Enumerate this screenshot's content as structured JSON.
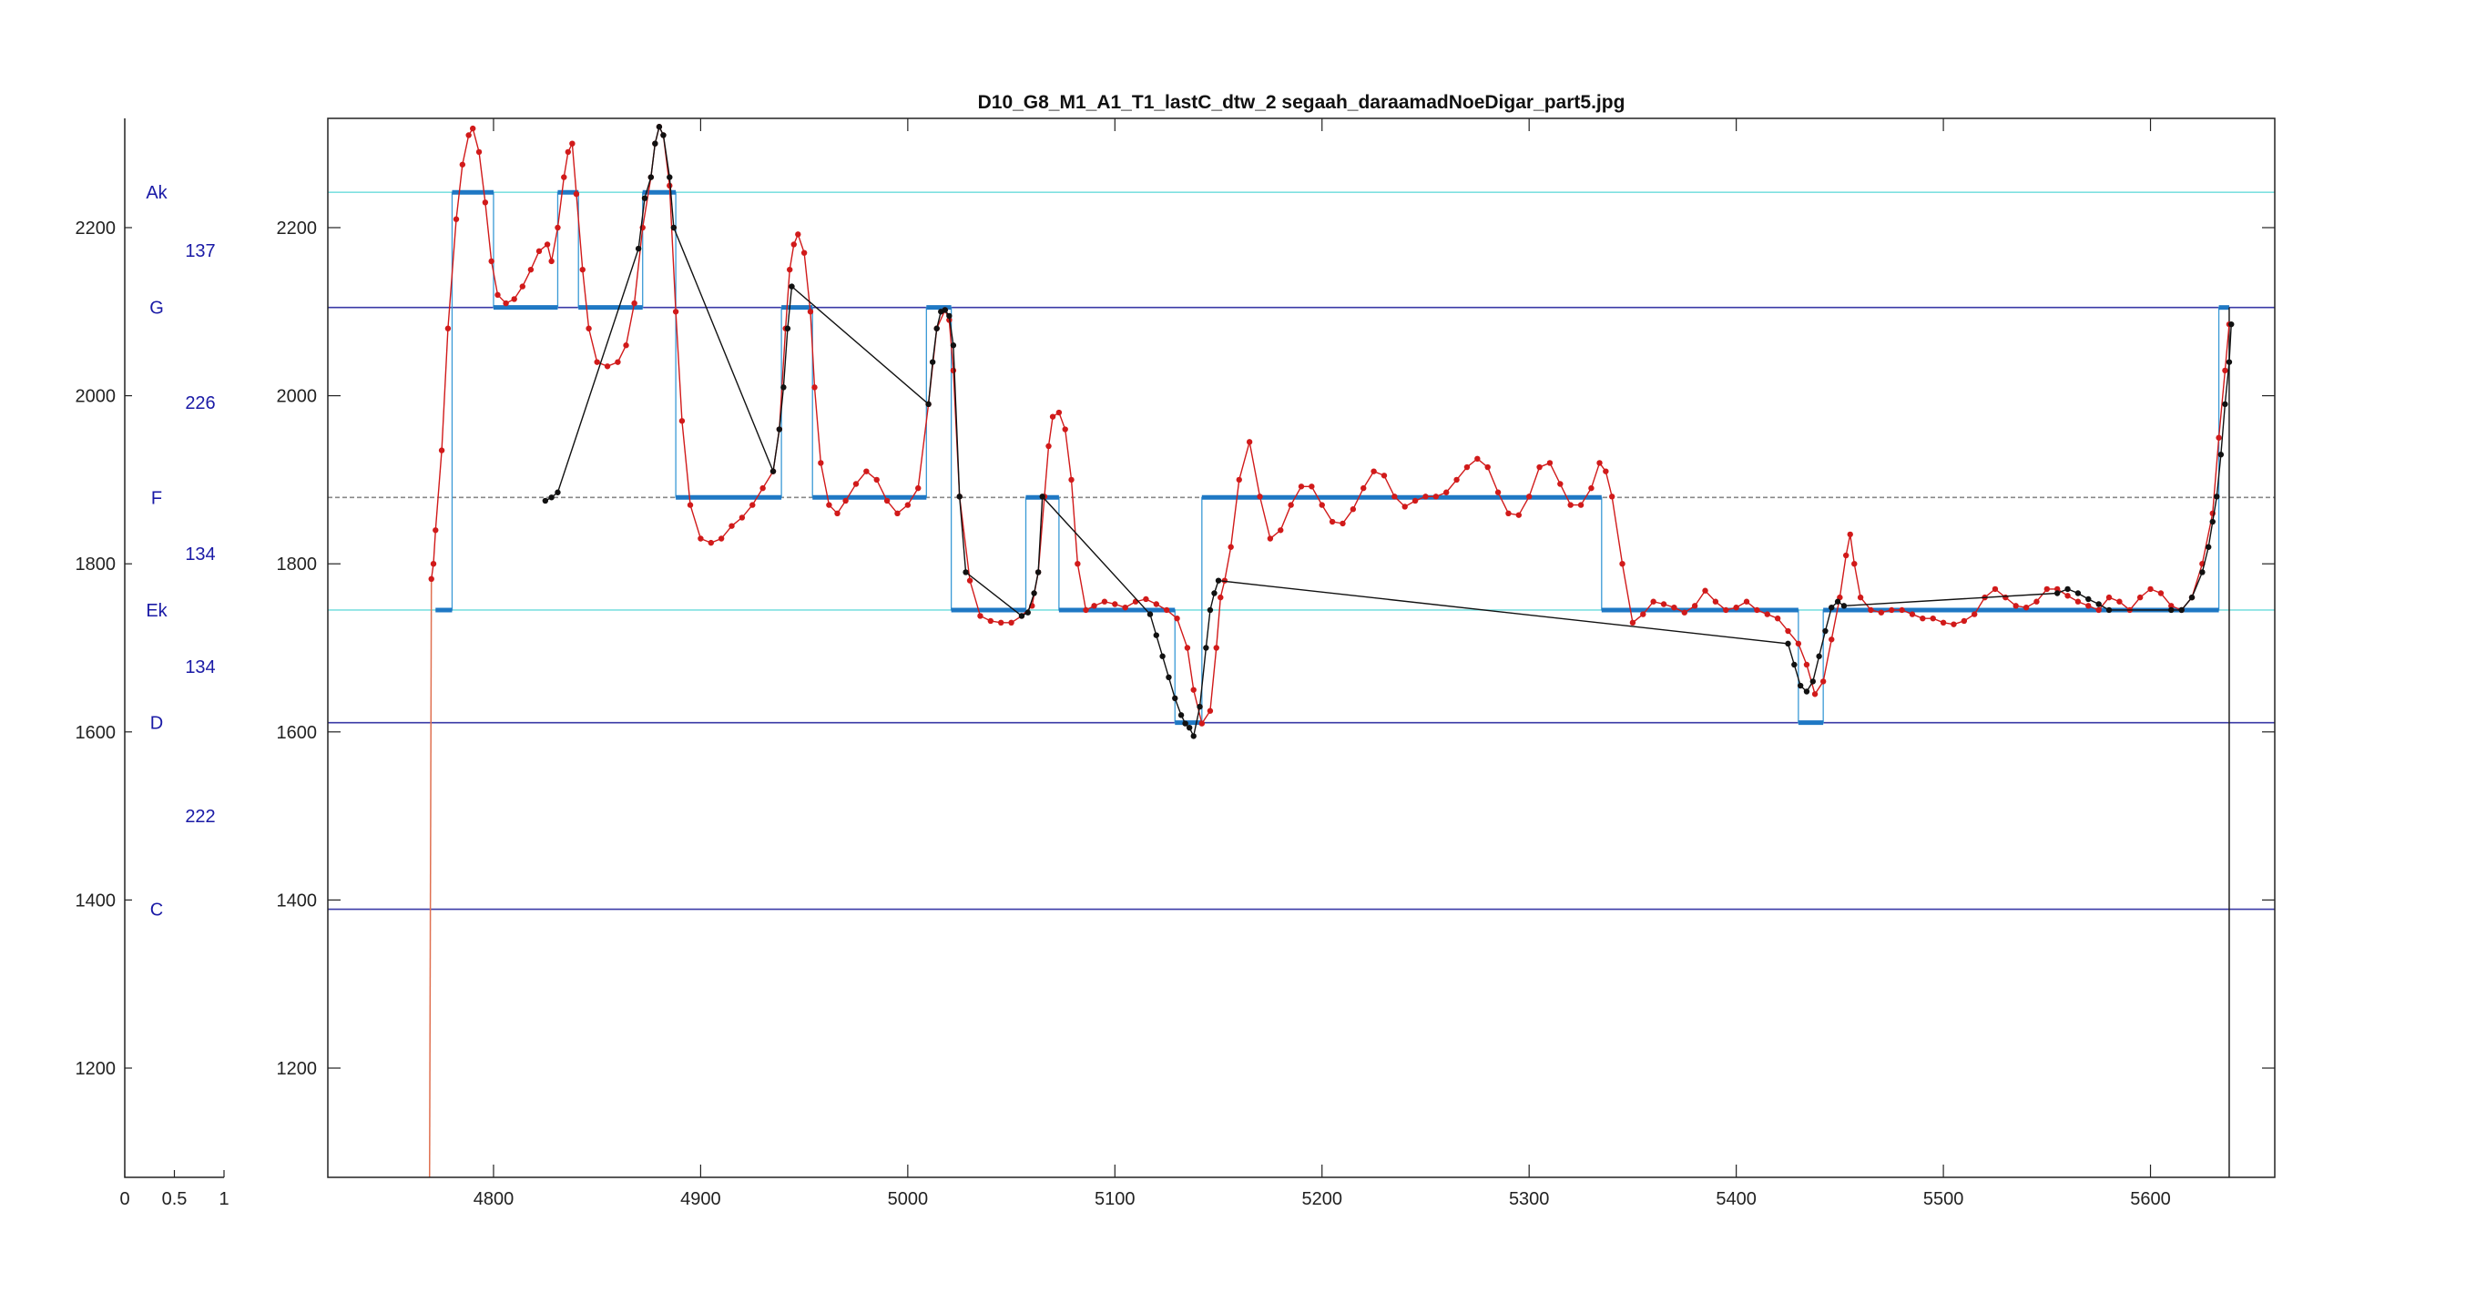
{
  "chart_data": [
    {
      "type": "line",
      "title": "D10_G8_M1_A1_T1_lastC_dtw_2 segaah_daraamadNoeDigar_part5.jpg",
      "xlabel": "",
      "ylabel": "",
      "xlim": [
        4720,
        5660
      ],
      "ylim": [
        1070,
        2330
      ],
      "xticks": [
        4800,
        4900,
        5000,
        5100,
        5200,
        5300,
        5400,
        5500,
        5600
      ],
      "yticks": [
        1200,
        1400,
        1600,
        1800,
        2000,
        2200
      ],
      "grid": false,
      "reference_lines": [
        {
          "note": "Ak",
          "y": 2242,
          "color": "#7fe0e0"
        },
        {
          "note": "G",
          "y": 2105,
          "color": "#3a3aa6"
        },
        {
          "note": "F",
          "y": 1879,
          "color": "#888888",
          "dashed": true
        },
        {
          "note": "Ek",
          "y": 1745,
          "color": "#7fe0e0"
        },
        {
          "note": "D",
          "y": 1611,
          "color": "#3a3aa6"
        },
        {
          "note": "C",
          "y": 1389,
          "color": "#3a3aa6"
        }
      ],
      "series": [
        {
          "color": "#d11a1a",
          "marker": "dot",
          "x": [
            4770,
            4771,
            4772,
            4775,
            4778,
            4782,
            4785,
            4788,
            4790,
            4793,
            4796,
            4799,
            4802,
            4806,
            4810,
            4814,
            4818,
            4822,
            4826,
            4828,
            4831,
            4834,
            4836,
            4838,
            4840,
            4843,
            4846,
            4850,
            4855,
            4860,
            4864,
            4868,
            4872,
            4876,
            4878,
            4880,
            4882,
            4885,
            4888,
            4891,
            4895,
            4900,
            4905,
            4910,
            4915,
            4920,
            4925,
            4930,
            4935,
            4938,
            4941,
            4943,
            4945,
            4947,
            4950,
            4953,
            4955,
            4958,
            4962,
            4966,
            4970,
            4975,
            4980,
            4985,
            4990,
            4995,
            5000,
            5005,
            5010,
            5014,
            5018,
            5020,
            5022,
            5025,
            5030,
            5035,
            5040,
            5045,
            5050,
            5055,
            5060,
            5063,
            5066,
            5068,
            5070,
            5073,
            5076,
            5079,
            5082,
            5086,
            5090,
            5095,
            5100,
            5105,
            5110,
            5115,
            5120,
            5125,
            5130,
            5135,
            5138,
            5142,
            5146,
            5149,
            5151,
            5153,
            5156,
            5160,
            5165,
            5170,
            5175,
            5180,
            5185,
            5190,
            5195,
            5200,
            5205,
            5210,
            5215,
            5220,
            5225,
            5230,
            5235,
            5240,
            5245,
            5250,
            5255,
            5260,
            5265,
            5270,
            5275,
            5280,
            5285,
            5290,
            5295,
            5300,
            5305,
            5310,
            5315,
            5320,
            5325,
            5330,
            5334,
            5337,
            5340,
            5345,
            5350,
            5355,
            5360,
            5365,
            5370,
            5375,
            5380,
            5385,
            5390,
            5395,
            5400,
            5405,
            5410,
            5415,
            5420,
            5425,
            5430,
            5434,
            5438,
            5442,
            5446,
            5450,
            5453,
            5455,
            5457,
            5460,
            5465,
            5470,
            5475,
            5480,
            5485,
            5490,
            5495,
            5500,
            5505,
            5510,
            5515,
            5520,
            5525,
            5530,
            5535,
            5540,
            5545,
            5550,
            5555,
            5560,
            5565,
            5570,
            5575,
            5580,
            5585,
            5590,
            5595,
            5600,
            5605,
            5610,
            5615,
            5620,
            5625,
            5630,
            5633,
            5636,
            5638
          ],
          "y": [
            1782,
            1800,
            1840,
            1935,
            2080,
            2210,
            2275,
            2310,
            2318,
            2290,
            2230,
            2160,
            2120,
            2110,
            2115,
            2130,
            2150,
            2172,
            2180,
            2160,
            2200,
            2260,
            2290,
            2300,
            2240,
            2150,
            2080,
            2040,
            2035,
            2040,
            2060,
            2110,
            2200,
            2260,
            2300,
            2320,
            2310,
            2250,
            2100,
            1970,
            1870,
            1830,
            1825,
            1830,
            1845,
            1855,
            1870,
            1890,
            1910,
            1960,
            2080,
            2150,
            2180,
            2192,
            2170,
            2100,
            2010,
            1920,
            1870,
            1860,
            1875,
            1895,
            1910,
            1900,
            1875,
            1860,
            1870,
            1890,
            1990,
            2080,
            2102,
            2090,
            2030,
            1880,
            1780,
            1738,
            1732,
            1730,
            1730,
            1738,
            1750,
            1790,
            1880,
            1940,
            1975,
            1980,
            1960,
            1900,
            1800,
            1745,
            1750,
            1755,
            1752,
            1748,
            1755,
            1758,
            1752,
            1745,
            1735,
            1700,
            1650,
            1610,
            1625,
            1700,
            1760,
            1780,
            1820,
            1900,
            1945,
            1880,
            1830,
            1840,
            1870,
            1892,
            1892,
            1870,
            1850,
            1848,
            1865,
            1890,
            1910,
            1905,
            1880,
            1868,
            1875,
            1880,
            1880,
            1885,
            1900,
            1915,
            1925,
            1915,
            1885,
            1860,
            1858,
            1880,
            1915,
            1920,
            1895,
            1870,
            1870,
            1890,
            1920,
            1910,
            1880,
            1800,
            1730,
            1740,
            1755,
            1752,
            1748,
            1742,
            1750,
            1768,
            1755,
            1745,
            1748,
            1755,
            1745,
            1740,
            1735,
            1720,
            1705,
            1680,
            1645,
            1660,
            1710,
            1760,
            1810,
            1835,
            1800,
            1760,
            1745,
            1742,
            1745,
            1745,
            1740,
            1735,
            1735,
            1730,
            1728,
            1732,
            1740,
            1760,
            1770,
            1760,
            1750,
            1748,
            1755,
            1770,
            1770,
            1762,
            1755,
            1750,
            1745,
            1760,
            1755,
            1745,
            1760,
            1770,
            1765,
            1750,
            1745,
            1760,
            1800,
            1860,
            1950,
            2030,
            2085
          ]
        },
        {
          "color": "#111111",
          "marker": "dot",
          "x": [
            4825,
            4828,
            4831,
            4870,
            4873,
            4876,
            4878,
            4880,
            4882,
            4885,
            4887,
            4935,
            4938,
            4940,
            4942,
            4944,
            5010,
            5012,
            5014,
            5016,
            5018,
            5020,
            5022,
            5025,
            5028,
            5055,
            5058,
            5061,
            5063,
            5065,
            5117,
            5120,
            5123,
            5126,
            5129,
            5132,
            5134,
            5136,
            5138,
            5141,
            5144,
            5146,
            5148,
            5150,
            5425,
            5428,
            5431,
            5434,
            5437,
            5440,
            5443,
            5446,
            5449,
            5452,
            5555,
            5560,
            5565,
            5570,
            5575,
            5580,
            5610,
            5615,
            5620,
            5625,
            5628,
            5630,
            5632,
            5634,
            5636,
            5638,
            5639
          ],
          "y": [
            1875,
            1879,
            1885,
            2175,
            2235,
            2260,
            2300,
            2320,
            2310,
            2260,
            2200,
            1910,
            1960,
            2010,
            2080,
            2130,
            1990,
            2040,
            2080,
            2100,
            2102,
            2095,
            2060,
            1880,
            1790,
            1738,
            1742,
            1765,
            1790,
            1880,
            1740,
            1715,
            1690,
            1665,
            1640,
            1620,
            1610,
            1605,
            1595,
            1630,
            1700,
            1745,
            1765,
            1780,
            1705,
            1680,
            1655,
            1648,
            1660,
            1690,
            1720,
            1748,
            1755,
            1750,
            1765,
            1770,
            1765,
            1758,
            1752,
            1745,
            1745,
            1745,
            1760,
            1790,
            1820,
            1850,
            1880,
            1930,
            1990,
            2040,
            2085
          ]
        }
      ],
      "step_segments": [
        {
          "x": [
            4772,
            4780
          ],
          "y": 1745
        },
        {
          "x": [
            4780,
            4800
          ],
          "y": 2242
        },
        {
          "x": [
            4800,
            4831
          ],
          "y": 2105
        },
        {
          "x": [
            4831,
            4841
          ],
          "y": 2242
        },
        {
          "x": [
            4841,
            4872
          ],
          "y": 2105
        },
        {
          "x": [
            4872,
            4888
          ],
          "y": 2242
        },
        {
          "x": [
            4888,
            4939
          ],
          "y": 1879
        },
        {
          "x": [
            4939,
            4954
          ],
          "y": 2105
        },
        {
          "x": [
            4954,
            5009
          ],
          "y": 1879
        },
        {
          "x": [
            5009,
            5021
          ],
          "y": 2105
        },
        {
          "x": [
            5021,
            5057
          ],
          "y": 1745
        },
        {
          "x": [
            5057,
            5073
          ],
          "y": 1879
        },
        {
          "x": [
            5073,
            5129
          ],
          "y": 1745
        },
        {
          "x": [
            5129,
            5142
          ],
          "y": 1611
        },
        {
          "x": [
            5142,
            5335
          ],
          "y": 1879
        },
        {
          "x": [
            5335,
            5430
          ],
          "y": 1745
        },
        {
          "x": [
            5430,
            5442
          ],
          "y": 1611
        },
        {
          "x": [
            5442,
            5633
          ],
          "y": 1745
        },
        {
          "x": [
            5633,
            5638
          ],
          "y": 2105
        }
      ]
    },
    {
      "type": "bar",
      "xlim": [
        0,
        1
      ],
      "ylim": [
        1070,
        2330
      ],
      "xticks": [
        "0",
        "0.5",
        "1"
      ],
      "yticks": [
        1200,
        1400,
        1600,
        1800,
        2000,
        2200
      ],
      "note_labels": [
        {
          "text": "Ak",
          "y": 2242
        },
        {
          "text": "G",
          "y": 2105
        },
        {
          "text": "F",
          "y": 1879
        },
        {
          "text": "Ek",
          "y": 1745
        },
        {
          "text": "D",
          "y": 1611
        },
        {
          "text": "C",
          "y": 1389
        }
      ],
      "interval_labels": [
        {
          "text": "137",
          "y": 2173
        },
        {
          "text": "226",
          "y": 1992
        },
        {
          "text": "134",
          "y": 1812
        },
        {
          "text": "134",
          "y": 1678
        },
        {
          "text": "222",
          "y": 1500
        }
      ]
    }
  ]
}
